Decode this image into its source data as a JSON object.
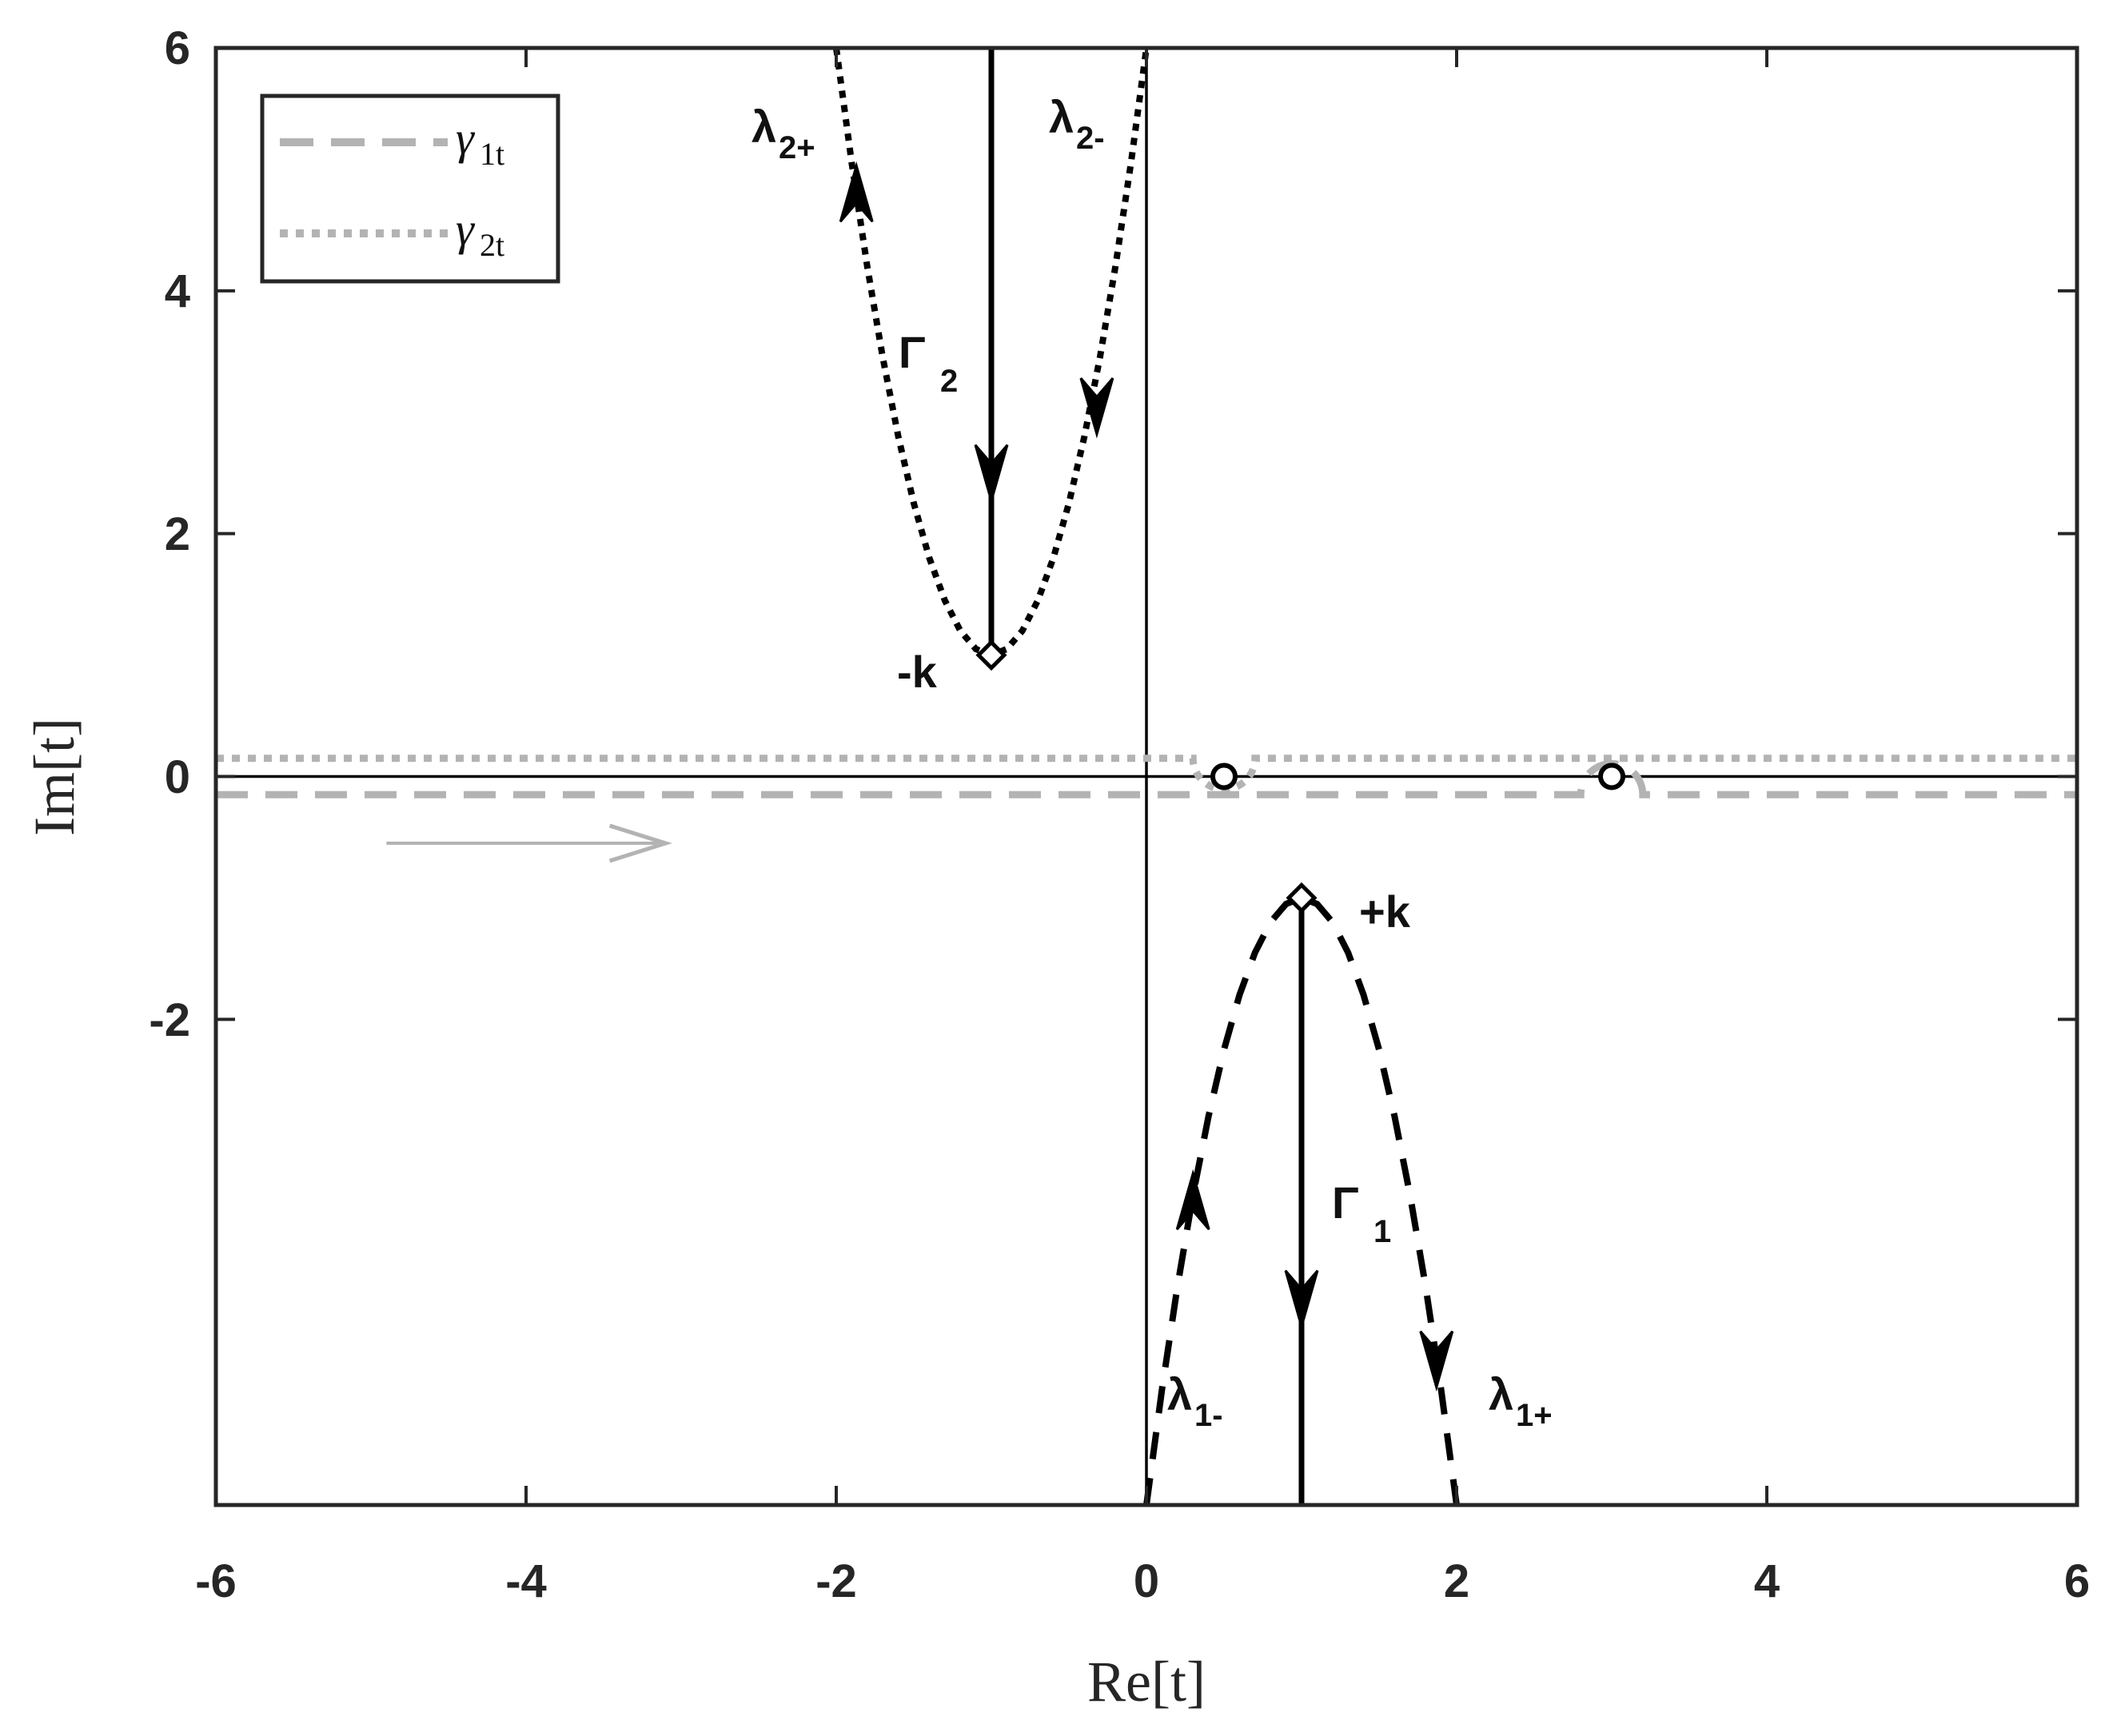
{
  "chart_data": {
    "type": "line",
    "title": "",
    "xlabel": "Re[t]",
    "ylabel": "Im[t]",
    "xlim": [
      -6,
      6
    ],
    "ylim": [
      -6,
      6
    ],
    "x_ticks": [
      "-6",
      "-4",
      "-2",
      "0",
      "2",
      "4",
      "6"
    ],
    "y_ticks": [
      "6",
      "4",
      "2",
      "0",
      "-2"
    ],
    "y_tick_values": [
      6,
      4,
      2,
      0,
      -2
    ],
    "grid": false,
    "legend": {
      "placement": "top-left",
      "entries": [
        {
          "name_main": "γ",
          "name_sub": "1t",
          "style": "dashed",
          "color": "#b3b3b3"
        },
        {
          "name_main": "γ",
          "name_sub": "2t",
          "style": "dotted",
          "color": "#b3b3b3"
        }
      ]
    },
    "series": [
      {
        "id": "lambda2",
        "style": "dotted",
        "color": "#000000",
        "x": [
          -2.0,
          -1.9,
          -1.8,
          -1.7,
          -1.6,
          -1.5,
          -1.4,
          -1.3,
          -1.2,
          -1.1,
          -1.0,
          -0.9,
          -0.8,
          -0.7,
          -0.6,
          -0.5,
          -0.4,
          -0.3,
          -0.2,
          -0.1,
          0.0
        ],
        "y": [
          6.0,
          5.05,
          4.2,
          3.45,
          2.8,
          2.25,
          1.8,
          1.45,
          1.2,
          1.05,
          1.0,
          1.05,
          1.2,
          1.45,
          1.8,
          2.25,
          2.8,
          3.45,
          4.2,
          5.05,
          6.0
        ]
      },
      {
        "id": "lambda1",
        "style": "dashed",
        "color": "#000000",
        "x": [
          0.0,
          0.1,
          0.2,
          0.3,
          0.4,
          0.5,
          0.6,
          0.7,
          0.8,
          0.9,
          1.0,
          1.1,
          1.2,
          1.3,
          1.4,
          1.5,
          1.6,
          1.7,
          1.8,
          1.9,
          2.0
        ],
        "y": [
          -6.0,
          -5.05,
          -4.2,
          -3.45,
          -2.8,
          -2.25,
          -1.8,
          -1.45,
          -1.2,
          -1.05,
          -1.0,
          -1.05,
          -1.2,
          -1.45,
          -1.8,
          -2.25,
          -2.8,
          -3.45,
          -4.2,
          -5.05,
          -6.0
        ]
      },
      {
        "id": "Gamma2",
        "style": "solid",
        "color": "#000000",
        "x": [
          -1,
          -1
        ],
        "y": [
          6,
          1
        ]
      },
      {
        "id": "Gamma1",
        "style": "solid",
        "color": "#000000",
        "x": [
          1,
          1
        ],
        "y": [
          -1,
          -6
        ]
      },
      {
        "id": "gamma1t",
        "style": "dashed",
        "color": "#b3b3b3",
        "y_level": -0.15,
        "bump_center": 3.0,
        "bump_radius": 0.2
      },
      {
        "id": "gamma2t",
        "style": "dotted",
        "color": "#b3b3b3",
        "y_level": 0.15,
        "bump_center": 0.5,
        "bump_radius": 0.2
      }
    ],
    "points": [
      {
        "id": "minus-k",
        "shape": "diamond",
        "x": -1,
        "y": 1
      },
      {
        "id": "plus-k",
        "shape": "diamond",
        "x": 1,
        "y": -1
      },
      {
        "id": "pole-a",
        "shape": "circle",
        "x": 0.5,
        "y": 0
      },
      {
        "id": "pole-b",
        "shape": "circle",
        "x": 3.0,
        "y": 0
      }
    ],
    "arrows": [
      {
        "id": "gamma2-arrow",
        "x": -1,
        "y": 2.5,
        "dir": "down",
        "color": "#000000"
      },
      {
        "id": "gamma1-arrow",
        "x": 1,
        "y": -4.3,
        "dir": "down",
        "color": "#000000"
      },
      {
        "id": "lambda2plus-arrow",
        "x": -1.87,
        "y": 4.8,
        "dir": "up",
        "color": "#000000"
      },
      {
        "id": "lambda2minus-arrow",
        "x": -0.32,
        "y": 3.05,
        "dir": "down",
        "color": "#000000"
      },
      {
        "id": "lambda1minus-arrow",
        "x": 0.3,
        "y": -3.5,
        "dir": "up",
        "color": "#000000"
      },
      {
        "id": "lambda1plus-arrow",
        "x": 1.87,
        "y": -4.8,
        "dir": "down",
        "color": "#000000"
      }
    ],
    "contour_direction_arrow": {
      "x1": -4.9,
      "x2": -3.1,
      "y": -0.55,
      "color": "#b3b3b3"
    },
    "annotations": {
      "minus_k": "-k",
      "plus_k": "+k",
      "lambda2_plus": {
        "main": "λ",
        "sub": "2+"
      },
      "lambda2_minus": {
        "main": "λ",
        "sub": "2-"
      },
      "lambda1_minus": {
        "main": "λ",
        "sub": "1-"
      },
      "lambda1_plus": {
        "main": "λ",
        "sub": "1+"
      },
      "Gamma2": {
        "main": "Γ",
        "sub": "2"
      },
      "Gamma1": {
        "main": "Γ",
        "sub": "1"
      }
    }
  }
}
